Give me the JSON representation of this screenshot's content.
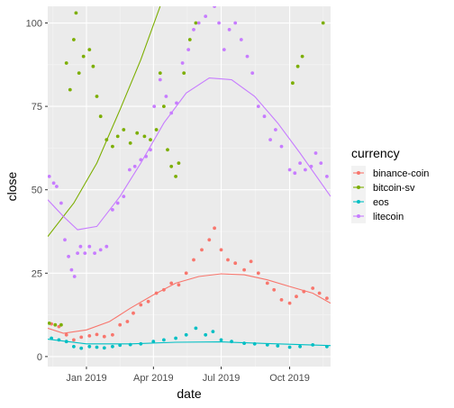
{
  "chart_data": {
    "type": "scatter",
    "xlabel": "date",
    "ylabel": "close",
    "xlim": [
      "2018-11-10",
      "2019-11-25"
    ],
    "ylim": [
      -3,
      105
    ],
    "x_ticks": [
      {
        "date": "2019-01-01",
        "label": "Jan 2019"
      },
      {
        "date": "2019-04-01",
        "label": "Apr 2019"
      },
      {
        "date": "2019-07-01",
        "label": "Jul 2019"
      },
      {
        "date": "2019-10-01",
        "label": "Oct 2019"
      }
    ],
    "y_ticks": [
      0,
      25,
      50,
      75,
      100
    ],
    "grid": true,
    "background": "#ebebeb",
    "legend": {
      "title": "currency",
      "position": "right",
      "entries": [
        "binance-coin",
        "bitcoin-sv",
        "eos",
        "litecoin"
      ]
    },
    "series": [
      {
        "name": "binance-coin",
        "color": "#F8766D",
        "points": [
          [
            "2018-11-15",
            9.8
          ],
          [
            "2018-11-25",
            9.0
          ],
          [
            "2018-12-05",
            6.5
          ],
          [
            "2018-12-15",
            5.0
          ],
          [
            "2018-12-25",
            5.8
          ],
          [
            "2019-01-05",
            6.2
          ],
          [
            "2019-01-15",
            6.6
          ],
          [
            "2019-01-25",
            6.0
          ],
          [
            "2019-02-05",
            6.5
          ],
          [
            "2019-02-15",
            9.5
          ],
          [
            "2019-02-25",
            10.5
          ],
          [
            "2019-03-05",
            13.0
          ],
          [
            "2019-03-15",
            15.5
          ],
          [
            "2019-03-25",
            16.5
          ],
          [
            "2019-04-05",
            19.0
          ],
          [
            "2019-04-15",
            20.0
          ],
          [
            "2019-04-25",
            22.0
          ],
          [
            "2019-05-05",
            21.5
          ],
          [
            "2019-05-15",
            25.0
          ],
          [
            "2019-05-25",
            29.0
          ],
          [
            "2019-06-05",
            32.0
          ],
          [
            "2019-06-15",
            35.0
          ],
          [
            "2019-06-22",
            38.5
          ],
          [
            "2019-07-01",
            32.0
          ],
          [
            "2019-07-10",
            29.0
          ],
          [
            "2019-07-20",
            28.0
          ],
          [
            "2019-08-01",
            26.0
          ],
          [
            "2019-08-10",
            28.5
          ],
          [
            "2019-08-20",
            25.0
          ],
          [
            "2019-09-01",
            22.0
          ],
          [
            "2019-09-10",
            20.0
          ],
          [
            "2019-09-20",
            17.0
          ],
          [
            "2019-10-01",
            16.0
          ],
          [
            "2019-10-10",
            18.0
          ],
          [
            "2019-10-20",
            19.5
          ],
          [
            "2019-11-01",
            20.5
          ],
          [
            "2019-11-10",
            19.0
          ],
          [
            "2019-11-20",
            17.5
          ]
        ],
        "trend": [
          [
            "2018-11-10",
            8.5
          ],
          [
            "2018-12-01",
            7.0
          ],
          [
            "2019-01-01",
            8.0
          ],
          [
            "2019-02-01",
            10.5
          ],
          [
            "2019-03-01",
            14.5
          ],
          [
            "2019-04-01",
            18.5
          ],
          [
            "2019-05-01",
            22.0
          ],
          [
            "2019-06-01",
            24.0
          ],
          [
            "2019-07-01",
            24.8
          ],
          [
            "2019-08-01",
            24.5
          ],
          [
            "2019-09-01",
            23.0
          ],
          [
            "2019-10-01",
            21.0
          ],
          [
            "2019-11-01",
            19.0
          ],
          [
            "2019-11-25",
            16.0
          ]
        ]
      },
      {
        "name": "bitcoin-sv",
        "color": "#7CAE00",
        "points": [
          [
            "2018-11-12",
            10.0
          ],
          [
            "2018-11-20",
            9.5
          ],
          [
            "2018-11-28",
            9.5
          ],
          [
            "2018-12-05",
            88.0
          ],
          [
            "2018-12-10",
            80.0
          ],
          [
            "2018-12-15",
            95.0
          ],
          [
            "2018-12-18",
            103.0
          ],
          [
            "2018-12-22",
            85.0
          ],
          [
            "2018-12-28",
            90.0
          ],
          [
            "2019-01-05",
            92.0
          ],
          [
            "2019-01-10",
            87.0
          ],
          [
            "2019-01-15",
            78.0
          ],
          [
            "2019-01-20",
            72.0
          ],
          [
            "2019-01-28",
            65.0
          ],
          [
            "2019-02-05",
            63.0
          ],
          [
            "2019-02-12",
            66.0
          ],
          [
            "2019-02-20",
            68.0
          ],
          [
            "2019-03-01",
            64.0
          ],
          [
            "2019-03-10",
            67.0
          ],
          [
            "2019-03-20",
            66.0
          ],
          [
            "2019-03-28",
            65.0
          ],
          [
            "2019-04-05",
            68.0
          ],
          [
            "2019-04-10",
            85.0
          ],
          [
            "2019-04-15",
            75.0
          ],
          [
            "2019-04-20",
            62.0
          ],
          [
            "2019-04-25",
            57.0
          ],
          [
            "2019-05-01",
            54.0
          ],
          [
            "2019-05-05",
            58.0
          ],
          [
            "2019-05-12",
            85.0
          ],
          [
            "2019-05-20",
            95.0
          ],
          [
            "2019-05-28",
            100.0
          ],
          [
            "2019-10-05",
            82.0
          ],
          [
            "2019-10-12",
            87.0
          ],
          [
            "2019-10-18",
            90.0
          ],
          [
            "2019-11-15",
            100.0
          ]
        ],
        "trend": [
          [
            "2018-11-10",
            36.0
          ],
          [
            "2018-12-15",
            46.0
          ],
          [
            "2019-01-15",
            58.0
          ],
          [
            "2019-02-15",
            74.0
          ],
          [
            "2019-03-15",
            89.0
          ],
          [
            "2019-04-10",
            105.0
          ]
        ]
      },
      {
        "name": "eos",
        "color": "#00BFC4",
        "points": [
          [
            "2018-11-15",
            5.5
          ],
          [
            "2018-11-25",
            5.0
          ],
          [
            "2018-12-05",
            4.5
          ],
          [
            "2018-12-15",
            3.0
          ],
          [
            "2018-12-25",
            2.5
          ],
          [
            "2019-01-05",
            3.0
          ],
          [
            "2019-01-15",
            2.8
          ],
          [
            "2019-01-25",
            2.6
          ],
          [
            "2019-02-05",
            3.0
          ],
          [
            "2019-02-15",
            3.4
          ],
          [
            "2019-03-01",
            3.6
          ],
          [
            "2019-03-15",
            3.8
          ],
          [
            "2019-04-01",
            4.5
          ],
          [
            "2019-04-15",
            5.0
          ],
          [
            "2019-05-01",
            5.5
          ],
          [
            "2019-05-15",
            6.5
          ],
          [
            "2019-05-28",
            8.5
          ],
          [
            "2019-06-10",
            6.5
          ],
          [
            "2019-06-20",
            7.5
          ],
          [
            "2019-07-01",
            5.0
          ],
          [
            "2019-07-15",
            4.5
          ],
          [
            "2019-08-01",
            4.0
          ],
          [
            "2019-08-15",
            3.8
          ],
          [
            "2019-09-01",
            3.5
          ],
          [
            "2019-09-15",
            3.2
          ],
          [
            "2019-10-01",
            2.8
          ],
          [
            "2019-10-15",
            3.0
          ],
          [
            "2019-11-01",
            3.5
          ],
          [
            "2019-11-20",
            3.0
          ]
        ],
        "trend": [
          [
            "2018-11-10",
            5.2
          ],
          [
            "2019-01-01",
            3.8
          ],
          [
            "2019-03-01",
            3.8
          ],
          [
            "2019-05-01",
            4.3
          ],
          [
            "2019-07-01",
            4.4
          ],
          [
            "2019-09-01",
            3.9
          ],
          [
            "2019-11-25",
            3.3
          ]
        ]
      },
      {
        "name": "litecoin",
        "color": "#C77CFF",
        "points": [
          [
            "2018-11-12",
            54.0
          ],
          [
            "2018-11-18",
            52.0
          ],
          [
            "2018-11-22",
            51.0
          ],
          [
            "2018-11-28",
            46.0
          ],
          [
            "2018-12-03",
            35.0
          ],
          [
            "2018-12-08",
            30.0
          ],
          [
            "2018-12-12",
            26.0
          ],
          [
            "2018-12-16",
            24.0
          ],
          [
            "2018-12-20",
            31.0
          ],
          [
            "2018-12-24",
            33.0
          ],
          [
            "2018-12-30",
            31.0
          ],
          [
            "2019-01-05",
            33.0
          ],
          [
            "2019-01-12",
            31.0
          ],
          [
            "2019-01-20",
            32.0
          ],
          [
            "2019-01-28",
            33.0
          ],
          [
            "2019-02-05",
            44.0
          ],
          [
            "2019-02-12",
            46.0
          ],
          [
            "2019-02-20",
            48.0
          ],
          [
            "2019-02-28",
            56.0
          ],
          [
            "2019-03-07",
            57.0
          ],
          [
            "2019-03-15",
            59.0
          ],
          [
            "2019-03-22",
            60.0
          ],
          [
            "2019-03-28",
            62.0
          ],
          [
            "2019-04-02",
            75.0
          ],
          [
            "2019-04-10",
            83.0
          ],
          [
            "2019-04-18",
            78.0
          ],
          [
            "2019-04-25",
            73.0
          ],
          [
            "2019-05-02",
            76.0
          ],
          [
            "2019-05-10",
            88.0
          ],
          [
            "2019-05-18",
            92.0
          ],
          [
            "2019-05-25",
            98.0
          ],
          [
            "2019-06-01",
            100.0
          ],
          [
            "2019-06-10",
            102.0
          ],
          [
            "2019-06-22",
            105.0
          ],
          [
            "2019-06-28",
            100.0
          ],
          [
            "2019-07-05",
            92.0
          ],
          [
            "2019-07-12",
            98.0
          ],
          [
            "2019-07-20",
            100.0
          ],
          [
            "2019-07-28",
            95.0
          ],
          [
            "2019-08-05",
            90.0
          ],
          [
            "2019-08-12",
            85.0
          ],
          [
            "2019-08-20",
            75.0
          ],
          [
            "2019-08-28",
            72.0
          ],
          [
            "2019-09-05",
            65.0
          ],
          [
            "2019-09-12",
            68.0
          ],
          [
            "2019-09-20",
            63.0
          ],
          [
            "2019-10-01",
            56.0
          ],
          [
            "2019-10-08",
            55.0
          ],
          [
            "2019-10-15",
            58.0
          ],
          [
            "2019-10-22",
            56.0
          ],
          [
            "2019-10-30",
            57.0
          ],
          [
            "2019-11-05",
            61.0
          ],
          [
            "2019-11-12",
            58.0
          ],
          [
            "2019-11-20",
            54.0
          ]
        ],
        "trend": [
          [
            "2018-11-10",
            47.0
          ],
          [
            "2018-12-01",
            42.0
          ],
          [
            "2018-12-20",
            38.0
          ],
          [
            "2019-01-15",
            39.0
          ],
          [
            "2019-02-15",
            48.0
          ],
          [
            "2019-03-15",
            58.0
          ],
          [
            "2019-04-15",
            70.0
          ],
          [
            "2019-05-15",
            79.0
          ],
          [
            "2019-06-15",
            83.5
          ],
          [
            "2019-07-15",
            83.0
          ],
          [
            "2019-08-15",
            78.0
          ],
          [
            "2019-09-15",
            70.0
          ],
          [
            "2019-10-15",
            61.0
          ],
          [
            "2019-11-25",
            48.0
          ]
        ]
      }
    ]
  }
}
